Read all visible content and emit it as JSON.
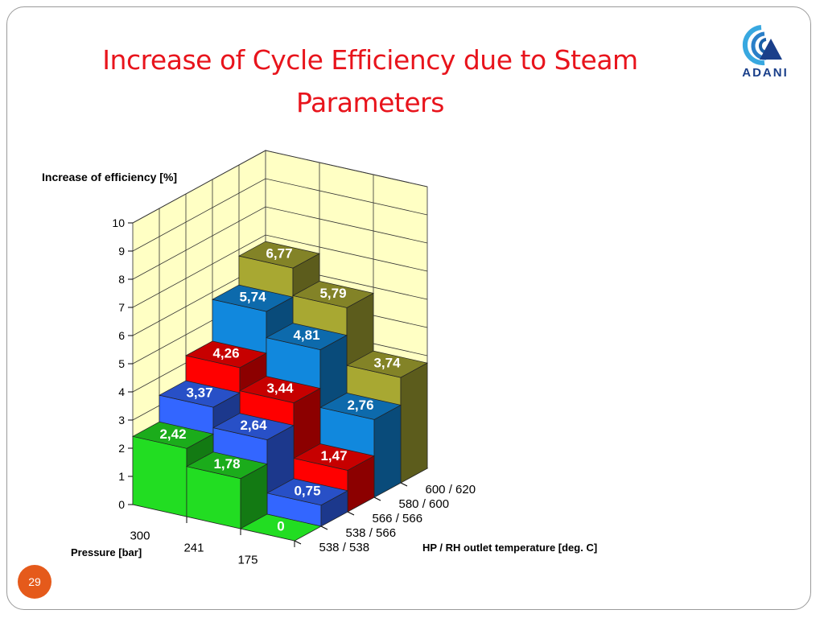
{
  "slide": {
    "title_line1": "Increase of Cycle Efficiency due to Steam",
    "title_line2": "Parameters",
    "logo_text": "ADANI",
    "page_number": "29"
  },
  "chart_data": {
    "type": "bar",
    "subtype": "3d-stepped-column",
    "ylabel": "Increase of efficiency  [%]",
    "ylim": [
      0,
      10
    ],
    "yticks": [
      "0",
      "1",
      "2",
      "3",
      "4",
      "5",
      "6",
      "7",
      "8",
      "9",
      "10"
    ],
    "x_axis_label": "Pressure  [bar]",
    "x_categories": [
      "300",
      "241",
      "175"
    ],
    "depth_axis_label": "HP / RH outlet temperature  [deg. C]",
    "depth_categories": [
      "538 / 538",
      "538 / 566",
      "566 / 566",
      "580 / 600",
      "600 / 620"
    ],
    "grid": true,
    "series": [
      {
        "temperature": "538 / 538",
        "values": [
          2.42,
          1.78,
          0
        ],
        "labels": [
          "2,42",
          "1,78",
          "0"
        ],
        "color": "#22dd22"
      },
      {
        "temperature": "538 / 566",
        "values": [
          3.37,
          2.64,
          0.75
        ],
        "labels": [
          "3,37",
          "2,64",
          "0,75"
        ],
        "color": "#3366ff"
      },
      {
        "temperature": "566 / 566",
        "values": [
          4.26,
          3.44,
          1.47
        ],
        "labels": [
          "4,26",
          "3,44",
          "1,47"
        ],
        "color": "#ff0000"
      },
      {
        "temperature": "580 / 600",
        "values": [
          5.74,
          4.81,
          2.76
        ],
        "labels": [
          "5,74",
          "4,81",
          "2,76"
        ],
        "color": "#1188dd"
      },
      {
        "temperature": "600 / 620",
        "values": [
          6.77,
          5.79,
          3.74
        ],
        "labels": [
          "6,77",
          "5,79",
          "3,74"
        ],
        "color": "#a8a832"
      }
    ]
  }
}
